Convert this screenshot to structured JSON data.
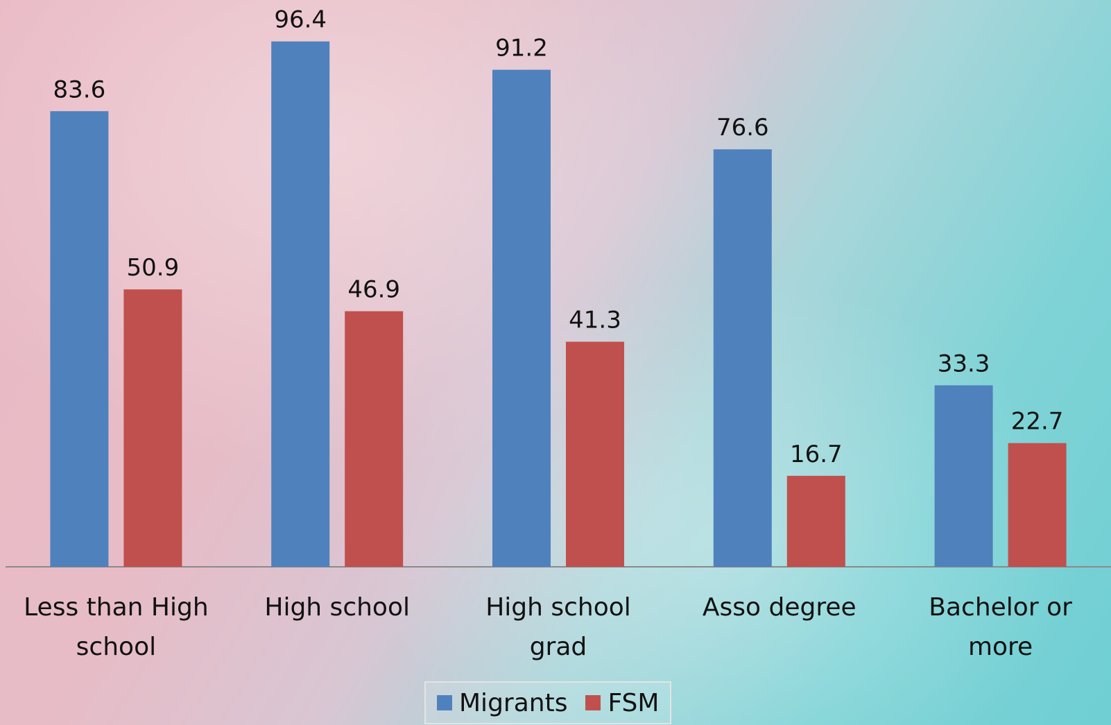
{
  "chart_data": {
    "type": "bar",
    "categories": [
      "Less than High school",
      "High school",
      "High school grad",
      "Asso degree",
      "Bachelor or more"
    ],
    "series": [
      {
        "name": "Migrants",
        "color": "#4f81bd",
        "values": [
          83.6,
          96.4,
          91.2,
          76.6,
          33.3
        ]
      },
      {
        "name": "FSM",
        "color": "#c0504d",
        "values": [
          50.9,
          46.9,
          41.3,
          16.7,
          22.7
        ]
      }
    ],
    "ylim": [
      0,
      104
    ],
    "grid": false,
    "legend": "bottom"
  }
}
